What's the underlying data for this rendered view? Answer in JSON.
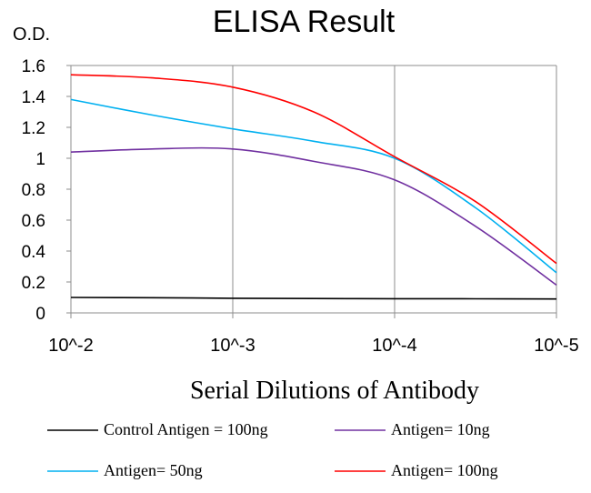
{
  "chart_data": {
    "type": "line",
    "title": "ELISA Result",
    "ylabel": "O.D.",
    "xlabel": "Serial Dilutions  of Antibody",
    "x_categories": [
      "10^-2",
      "10^-3",
      "10^-4",
      "10^-5"
    ],
    "ylim": [
      0,
      1.6
    ],
    "y_ticks": [
      "0",
      "0.2",
      "0.4",
      "0.6",
      "0.8",
      "1",
      "1.2",
      "1.4",
      "1.6"
    ],
    "grid": "vertical",
    "legend_position": "bottom",
    "series": [
      {
        "name": "Control Antigen = 100ng",
        "color": "#000000",
        "x": [
          0,
          0.5,
          1,
          1.5,
          2,
          2.5,
          3
        ],
        "values": [
          0.1,
          0.098,
          0.095,
          0.093,
          0.092,
          0.091,
          0.09
        ]
      },
      {
        "name": "Antigen= 10ng",
        "color": "#7030A0",
        "x": [
          0,
          0.5,
          1,
          1.5,
          2,
          2.5,
          3
        ],
        "values": [
          1.04,
          1.06,
          1.06,
          0.98,
          0.86,
          0.56,
          0.18
        ]
      },
      {
        "name": "Antigen= 50ng",
        "color": "#00B0F0",
        "x": [
          0,
          0.5,
          1,
          1.5,
          2,
          2.5,
          3
        ],
        "values": [
          1.38,
          1.28,
          1.19,
          1.11,
          1.0,
          0.68,
          0.26
        ]
      },
      {
        "name": "Antigen= 100ng",
        "color": "#FF0000",
        "x": [
          0,
          0.5,
          1,
          1.5,
          2,
          2.5,
          3
        ],
        "values": [
          1.54,
          1.52,
          1.46,
          1.3,
          1.01,
          0.72,
          0.32
        ]
      }
    ]
  }
}
